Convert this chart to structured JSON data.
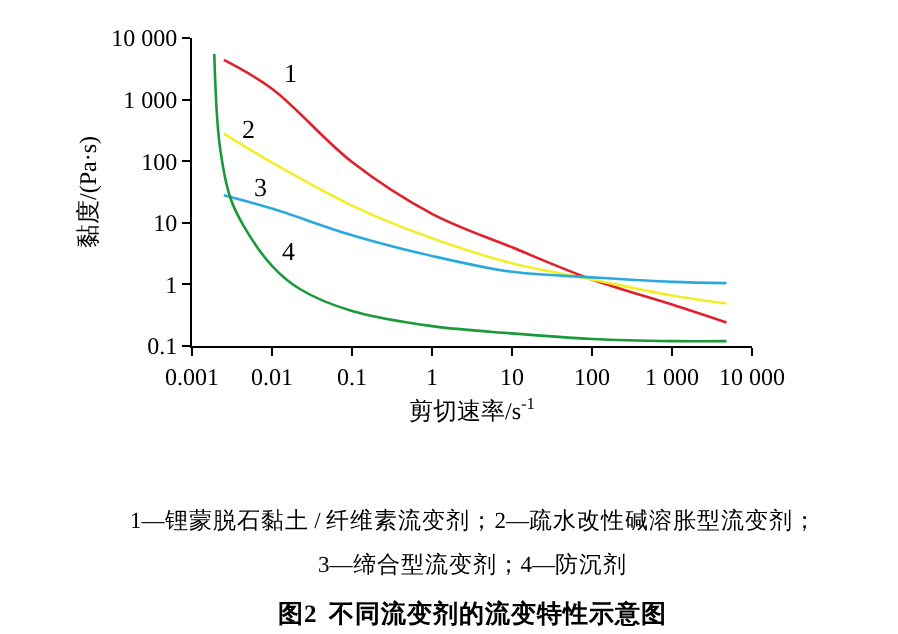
{
  "chart_data": {
    "type": "line",
    "title": "图2  不同流变剂的流变特性示意图",
    "xlabel": "剪切速率/s$^{-1}$",
    "ylabel": "黏度/(Pa·s)",
    "log": "xy",
    "legend": false,
    "marker": "none",
    "line_style": "solid",
    "xlim": [
      0.001,
      10000
    ],
    "xticks": [
      0.001,
      0.01,
      0.1,
      1,
      10,
      100,
      {
        "value": 1000,
        "label": "1 000"
      },
      {
        "value": 10000,
        "label": "10 000"
      }
    ],
    "ylim": [
      0.1,
      10000
    ],
    "yticks": [
      0.1,
      1,
      10,
      100,
      {
        "value": 1000,
        "label": "1 000"
      },
      {
        "value": 10000,
        "label": "10 000"
      }
    ],
    "series": [
      {
        "name": "1",
        "color": "#e0202a",
        "x": [
          0.0025,
          0.01,
          0.1,
          1,
          10,
          100,
          1000,
          4800
        ],
        "values": [
          4400,
          1500,
          97,
          14,
          4,
          1.2,
          0.47,
          0.24
        ]
      },
      {
        "name": "2",
        "color": "#f2ee2a",
        "x": [
          0.0025,
          0.01,
          0.1,
          1,
          10,
          100,
          1000,
          4800
        ],
        "values": [
          280,
          95,
          19,
          5.6,
          2.2,
          1.2,
          0.66,
          0.49
        ]
      },
      {
        "name": "3",
        "color": "#2aa8e0",
        "x": [
          0.0025,
          0.01,
          0.1,
          1,
          10,
          100,
          1000,
          4800
        ],
        "values": [
          28,
          17,
          6.3,
          2.9,
          1.6,
          1.3,
          1.1,
          1.05
        ]
      },
      {
        "name": "4",
        "color": "#1a9a3a",
        "x": [
          0.0019,
          0.0022,
          0.003,
          0.0044,
          0.01,
          0.022,
          0.1,
          1,
          10,
          100,
          1000,
          4800
        ],
        "values": [
          5500,
          200,
          26,
          9,
          2,
          0.85,
          0.37,
          0.21,
          0.16,
          0.13,
          0.12,
          0.12
        ]
      }
    ],
    "annotations": [
      "1—锂蒙脱石黏土 / 纤维素流变剂；2—疏水改性碱溶胀型流变剂；",
      "3—缔合型流变剂；4—防沉剂"
    ]
  }
}
